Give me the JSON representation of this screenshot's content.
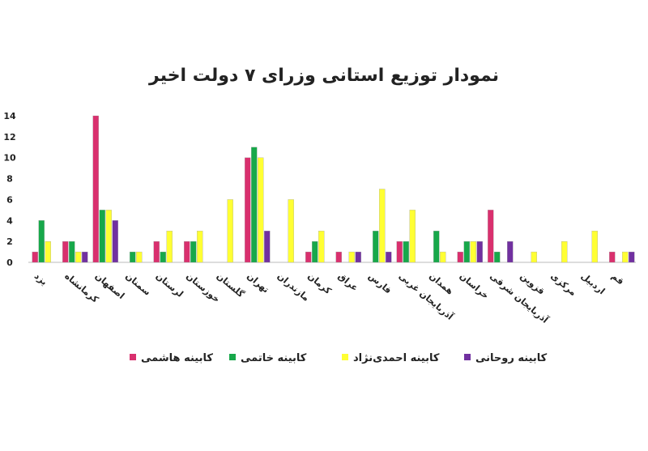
{
  "chart_data": {
    "type": "bar",
    "title": "نمودار توزیع استانی وزرای ۷ دولت اخیر",
    "categories": [
      "یزد",
      "کرمانشاه",
      "اصفهان",
      "سمنان",
      "لرستان",
      "خوزستان",
      "گلستان",
      "تهران",
      "مازندران",
      "کرمان",
      "عراق",
      "فارس",
      "آذربایجان غربی",
      "همدان",
      "خراسان",
      "آذربایجان شرقی",
      "قزوین",
      "مرکزی",
      "اردبیل",
      "قم"
    ],
    "series": [
      {
        "name": "کابینه هاشمی",
        "color": "#d9306e",
        "values": [
          1,
          2,
          14,
          0,
          2,
          2,
          0,
          10,
          0,
          1,
          1,
          0,
          2,
          0,
          1,
          5,
          0,
          0,
          0,
          1
        ]
      },
      {
        "name": "کابینه خاتمی",
        "color": "#17a84a",
        "values": [
          4,
          2,
          5,
          1,
          1,
          2,
          0,
          11,
          0,
          2,
          0,
          3,
          2,
          3,
          2,
          1,
          0,
          0,
          0,
          0
        ]
      },
      {
        "name": "کابینه احمدی‌نژاد",
        "color": "#ffff33",
        "values": [
          2,
          1,
          5,
          1,
          3,
          3,
          6,
          10,
          6,
          3,
          1,
          7,
          5,
          1,
          2,
          0,
          1,
          2,
          3,
          1
        ]
      },
      {
        "name": "کابینه روحانی",
        "color": "#7130a0",
        "values": [
          0,
          1,
          4,
          0,
          0,
          0,
          0,
          3,
          0,
          0,
          1,
          1,
          0,
          0,
          2,
          2,
          0,
          0,
          0,
          1
        ]
      }
    ],
    "ylim": [
      0,
      14
    ],
    "yticks": [
      0,
      2,
      4,
      6,
      8,
      10,
      12,
      14
    ],
    "grid": false
  }
}
